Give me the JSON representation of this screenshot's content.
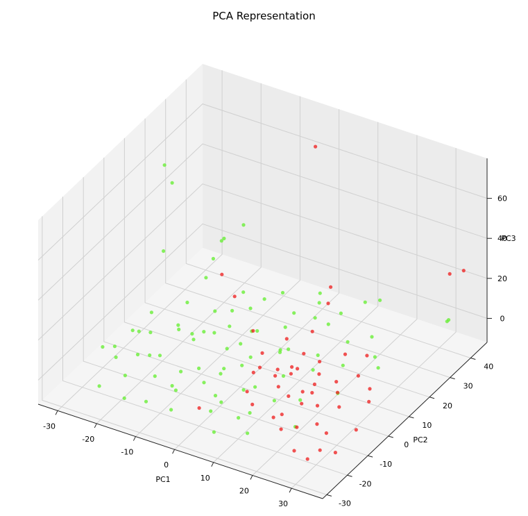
{
  "chart_data": {
    "type": "scatter",
    "title": "PCA Representation",
    "xlabel": "PC1",
    "ylabel": "PC2",
    "zlabel": "PC3",
    "xlim": [
      -35,
      38
    ],
    "ylim": [
      -32,
      48
    ],
    "zlim": [
      -12,
      80
    ],
    "x_ticks": [
      -30,
      -20,
      -10,
      0,
      10,
      20,
      30
    ],
    "y_ticks": [
      -30,
      -20,
      -10,
      0,
      10,
      20,
      30,
      40
    ],
    "z_ticks": [
      0,
      20,
      40,
      60
    ],
    "grid": true,
    "colors": {
      "green": "#66ee33",
      "red": "#ee2222"
    },
    "points": [
      {
        "x": -30.0,
        "y": 20.0,
        "z": 60.0,
        "c": "green"
      },
      {
        "x": -27.0,
        "y": 18.0,
        "z": 55.0,
        "c": "green"
      },
      {
        "x": -5.0,
        "y": 46.0,
        "z": 60.0,
        "c": "red"
      },
      {
        "x": -8.0,
        "y": 2.0,
        "z": 45.0,
        "c": "green"
      },
      {
        "x": -15.0,
        "y": 30.0,
        "z": 30.0,
        "c": "green"
      },
      {
        "x": -25.0,
        "y": 10.0,
        "z": 30.0,
        "c": "green"
      },
      {
        "x": -18.0,
        "y": 25.0,
        "z": 25.0,
        "c": "green"
      },
      {
        "x": -20.0,
        "y": 30.0,
        "z": 20.0,
        "c": "green"
      },
      {
        "x": -10.0,
        "y": 10.0,
        "z": 28.0,
        "c": "red"
      },
      {
        "x": 10.0,
        "y": 25.0,
        "z": 20.0,
        "c": "red"
      },
      {
        "x": 12.0,
        "y": 20.0,
        "z": 18.0,
        "c": "red"
      },
      {
        "x": 20.0,
        "y": 30.0,
        "z": 15.0,
        "c": "green"
      },
      {
        "x": 15.0,
        "y": 10.0,
        "z": 30.0,
        "c": "green"
      },
      {
        "x": 30.0,
        "y": 45.0,
        "z": 20.0,
        "c": "red"
      },
      {
        "x": 32.0,
        "y": 48.0,
        "z": 20.0,
        "c": "red"
      },
      {
        "x": 35.0,
        "y": 35.0,
        "z": 10.0,
        "c": "green"
      },
      {
        "x": 33.0,
        "y": 38.0,
        "z": 5.0,
        "c": "green"
      },
      {
        "x": -25.0,
        "y": -5.0,
        "z": 5.0,
        "c": "green"
      },
      {
        "x": -22.0,
        "y": -2.0,
        "z": 3.0,
        "c": "green"
      },
      {
        "x": -28.0,
        "y": -8.0,
        "z": -2.0,
        "c": "green"
      },
      {
        "x": -15.0,
        "y": 5.0,
        "z": 0.0,
        "c": "green"
      },
      {
        "x": -12.0,
        "y": 0.0,
        "z": 4.0,
        "c": "green"
      },
      {
        "x": -18.0,
        "y": -10.0,
        "z": 2.0,
        "c": "green"
      },
      {
        "x": -8.0,
        "y": -5.0,
        "z": -3.0,
        "c": "green"
      },
      {
        "x": -5.0,
        "y": 3.0,
        "z": 1.0,
        "c": "green"
      },
      {
        "x": -3.0,
        "y": -12.0,
        "z": 0.0,
        "c": "green"
      },
      {
        "x": 0.0,
        "y": 5.0,
        "z": -2.0,
        "c": "green"
      },
      {
        "x": 2.0,
        "y": -3.0,
        "z": 3.0,
        "c": "green"
      },
      {
        "x": 5.0,
        "y": 10.0,
        "z": 0.0,
        "c": "green"
      },
      {
        "x": -10.0,
        "y": 15.0,
        "z": 5.0,
        "c": "green"
      },
      {
        "x": -20.0,
        "y": 8.0,
        "z": -4.0,
        "c": "green"
      },
      {
        "x": -14.0,
        "y": -15.0,
        "z": -1.0,
        "c": "green"
      },
      {
        "x": -6.0,
        "y": -20.0,
        "z": 2.0,
        "c": "green"
      },
      {
        "x": 3.0,
        "y": -15.0,
        "z": -3.0,
        "c": "green"
      },
      {
        "x": 8.0,
        "y": -8.0,
        "z": 1.0,
        "c": "green"
      },
      {
        "x": 10.0,
        "y": 2.0,
        "z": -2.0,
        "c": "green"
      },
      {
        "x": -2.0,
        "y": 12.0,
        "z": 3.0,
        "c": "green"
      },
      {
        "x": -16.0,
        "y": 18.0,
        "z": -2.0,
        "c": "green"
      },
      {
        "x": -24.0,
        "y": -15.0,
        "z": 2.0,
        "c": "green"
      },
      {
        "x": -9.0,
        "y": 22.0,
        "z": 0.0,
        "c": "green"
      },
      {
        "x": 1.0,
        "y": 20.0,
        "z": -1.0,
        "c": "green"
      },
      {
        "x": 6.0,
        "y": 25.0,
        "z": 2.0,
        "c": "green"
      },
      {
        "x": 12.0,
        "y": 15.0,
        "z": -3.0,
        "c": "green"
      },
      {
        "x": 4.0,
        "y": -22.0,
        "z": 0.0,
        "c": "green"
      },
      {
        "x": -11.0,
        "y": -25.0,
        "z": -2.0,
        "c": "green"
      },
      {
        "x": -19.0,
        "y": -20.0,
        "z": 1.0,
        "c": "green"
      },
      {
        "x": -26.0,
        "y": 0.0,
        "z": -1.0,
        "c": "green"
      },
      {
        "x": -7.0,
        "y": 8.0,
        "z": 6.0,
        "c": "green"
      },
      {
        "x": 9.0,
        "y": -18.0,
        "z": -4.0,
        "c": "green"
      },
      {
        "x": 14.0,
        "y": -10.0,
        "z": 0.0,
        "c": "green"
      },
      {
        "x": -13.0,
        "y": 12.0,
        "z": -5.0,
        "c": "green"
      },
      {
        "x": 0.0,
        "y": -8.0,
        "z": 5.0,
        "c": "green"
      },
      {
        "x": 7.0,
        "y": 6.0,
        "z": 4.0,
        "c": "green"
      },
      {
        "x": -4.0,
        "y": -2.0,
        "z": -6.0,
        "c": "green"
      },
      {
        "x": -17.0,
        "y": 2.0,
        "z": 6.0,
        "c": "green"
      },
      {
        "x": -21.0,
        "y": 14.0,
        "z": 3.0,
        "c": "green"
      },
      {
        "x": 11.0,
        "y": 22.0,
        "z": 5.0,
        "c": "green"
      },
      {
        "x": 16.0,
        "y": 5.0,
        "z": 2.0,
        "c": "green"
      },
      {
        "x": 18.0,
        "y": -5.0,
        "z": -2.0,
        "c": "green"
      },
      {
        "x": 20.0,
        "y": 12.0,
        "z": 0.0,
        "c": "green"
      },
      {
        "x": 22.0,
        "y": -15.0,
        "z": -3.0,
        "c": "green"
      },
      {
        "x": 25.0,
        "y": 0.0,
        "z": 1.0,
        "c": "green"
      },
      {
        "x": 15.0,
        "y": -25.0,
        "z": -1.0,
        "c": "green"
      },
      {
        "x": 10.0,
        "y": 30.0,
        "z": 2.0,
        "c": "green"
      },
      {
        "x": -1.0,
        "y": 28.0,
        "z": -3.0,
        "c": "green"
      },
      {
        "x": 5.0,
        "y": 0.0,
        "z": 1.0,
        "c": "red"
      },
      {
        "x": 8.0,
        "y": 3.0,
        "z": -1.0,
        "c": "red"
      },
      {
        "x": 10.0,
        "y": -2.0,
        "z": 2.0,
        "c": "red"
      },
      {
        "x": 12.0,
        "y": 5.0,
        "z": 0.0,
        "c": "red"
      },
      {
        "x": 15.0,
        "y": -5.0,
        "z": -2.0,
        "c": "red"
      },
      {
        "x": 13.0,
        "y": 0.0,
        "z": 3.0,
        "c": "red"
      },
      {
        "x": 18.0,
        "y": 2.0,
        "z": -1.0,
        "c": "red"
      },
      {
        "x": 20.0,
        "y": -3.0,
        "z": 1.0,
        "c": "red"
      },
      {
        "x": 16.0,
        "y": 8.0,
        "z": -3.0,
        "c": "red"
      },
      {
        "x": 22.0,
        "y": 5.0,
        "z": 0.0,
        "c": "red"
      },
      {
        "x": 24.0,
        "y": -8.0,
        "z": 2.0,
        "c": "red"
      },
      {
        "x": 26.0,
        "y": -12.0,
        "z": -2.0,
        "c": "red"
      },
      {
        "x": 28.0,
        "y": -5.0,
        "z": 1.0,
        "c": "red"
      },
      {
        "x": 30.0,
        "y": -15.0,
        "z": -1.0,
        "c": "red"
      },
      {
        "x": 25.0,
        "y": 10.0,
        "z": 0.0,
        "c": "red"
      },
      {
        "x": 19.0,
        "y": 15.0,
        "z": 2.0,
        "c": "red"
      },
      {
        "x": 14.0,
        "y": 12.0,
        "z": -2.0,
        "c": "red"
      },
      {
        "x": 7.0,
        "y": -10.0,
        "z": 0.0,
        "c": "red"
      },
      {
        "x": 11.0,
        "y": -15.0,
        "z": 1.0,
        "c": "red"
      },
      {
        "x": 17.0,
        "y": -12.0,
        "z": -3.0,
        "c": "red"
      },
      {
        "x": 21.0,
        "y": -20.0,
        "z": 0.0,
        "c": "red"
      },
      {
        "x": 27.0,
        "y": -25.0,
        "z": -2.0,
        "c": "red"
      },
      {
        "x": 32.0,
        "y": -28.0,
        "z": 0.0,
        "c": "red"
      },
      {
        "x": 35.0,
        "y": -10.0,
        "z": -1.0,
        "c": "red"
      },
      {
        "x": 33.0,
        "y": 0.0,
        "z": 2.0,
        "c": "red"
      },
      {
        "x": 29.0,
        "y": 8.0,
        "z": -2.0,
        "c": "red"
      },
      {
        "x": 23.0,
        "y": 18.0,
        "z": 1.0,
        "c": "red"
      },
      {
        "x": 9.0,
        "y": 8.0,
        "z": -4.0,
        "c": "red"
      },
      {
        "x": 3.0,
        "y": 5.0,
        "z": 2.0,
        "c": "red"
      },
      {
        "x": 6.0,
        "y": -5.0,
        "z": 4.0,
        "c": "red"
      },
      {
        "x": -2.0,
        "y": 10.0,
        "z": 5.0,
        "c": "red"
      },
      {
        "x": -12.0,
        "y": 20.0,
        "z": 6.0,
        "c": "red"
      },
      {
        "x": 0.0,
        "y": -20.0,
        "z": -3.0,
        "c": "red"
      },
      {
        "x": 4.0,
        "y": 15.0,
        "z": 0.0,
        "c": "red"
      },
      {
        "x": 18.0,
        "y": -18.0,
        "z": 2.0,
        "c": "red"
      },
      {
        "x": 26.0,
        "y": -2.0,
        "z": 4.0,
        "c": "red"
      },
      {
        "x": 31.0,
        "y": -20.0,
        "z": -4.0,
        "c": "red"
      },
      {
        "x": 36.0,
        "y": -22.0,
        "z": 0.0,
        "c": "red"
      },
      {
        "x": -22.0,
        "y": 25.0,
        "z": 4.0,
        "c": "green"
      },
      {
        "x": -27.0,
        "y": 8.0,
        "z": 0.0,
        "c": "green"
      },
      {
        "x": -15.0,
        "y": -28.0,
        "z": 0.0,
        "c": "green"
      },
      {
        "x": -3.0,
        "y": -28.0,
        "z": 2.0,
        "c": "green"
      },
      {
        "x": 8.0,
        "y": -28.0,
        "z": -2.0,
        "c": "green"
      },
      {
        "x": 2.0,
        "y": 35.0,
        "z": 2.0,
        "c": "green"
      },
      {
        "x": -6.0,
        "y": 32.0,
        "z": 0.0,
        "c": "green"
      },
      {
        "x": 12.0,
        "y": 38.0,
        "z": 1.0,
        "c": "green"
      },
      {
        "x": -23.0,
        "y": -25.0,
        "z": -2.0,
        "c": "green"
      },
      {
        "x": -29.0,
        "y": -12.0,
        "z": 1.0,
        "c": "green"
      },
      {
        "x": 24.0,
        "y": 20.0,
        "z": -1.0,
        "c": "green"
      },
      {
        "x": 28.0,
        "y": 14.0,
        "z": 2.0,
        "c": "green"
      },
      {
        "x": 19.0,
        "y": 28.0,
        "z": -2.0,
        "c": "green"
      },
      {
        "x": -10.0,
        "y": -10.0,
        "z": -1.0,
        "c": "green"
      },
      {
        "x": -5.0,
        "y": 15.0,
        "z": -2.0,
        "c": "green"
      },
      {
        "x": 6.0,
        "y": 12.0,
        "z": -1.0,
        "c": "green"
      },
      {
        "x": -8.0,
        "y": -18.0,
        "z": 1.0,
        "c": "green"
      },
      {
        "x": 1.0,
        "y": -14.0,
        "z": -2.0,
        "c": "green"
      },
      {
        "x": -18.0,
        "y": -5.0,
        "z": -3.0,
        "c": "green"
      },
      {
        "x": -12.0,
        "y": 5.0,
        "z": 3.0,
        "c": "green"
      },
      {
        "x": 13.0,
        "y": -20.0,
        "z": 3.0,
        "c": "green"
      },
      {
        "x": 17.0,
        "y": 20.0,
        "z": 2.0,
        "c": "green"
      },
      {
        "x": -20.0,
        "y": -12.0,
        "z": 3.0,
        "c": "green"
      },
      {
        "x": -7.0,
        "y": 25.0,
        "z": 3.0,
        "c": "green"
      },
      {
        "x": 4.0,
        "y": -6.0,
        "z": -5.0,
        "c": "green"
      },
      {
        "x": -1.0,
        "y": 2.0,
        "z": 7.0,
        "c": "green"
      },
      {
        "x": -14.0,
        "y": 28.0,
        "z": -1.0,
        "c": "green"
      },
      {
        "x": 9.0,
        "y": 18.0,
        "z": 4.0,
        "c": "red"
      },
      {
        "x": 21.0,
        "y": -10.0,
        "z": 3.0,
        "c": "red"
      },
      {
        "x": 14.0,
        "y": -8.0,
        "z": 5.0,
        "c": "red"
      },
      {
        "x": 24.0,
        "y": -18.0,
        "z": 1.0,
        "c": "red"
      },
      {
        "x": 11.0,
        "y": 10.0,
        "z": 2.0,
        "c": "red"
      },
      {
        "x": 16.0,
        "y": 0.0,
        "z": -4.0,
        "c": "red"
      }
    ]
  }
}
